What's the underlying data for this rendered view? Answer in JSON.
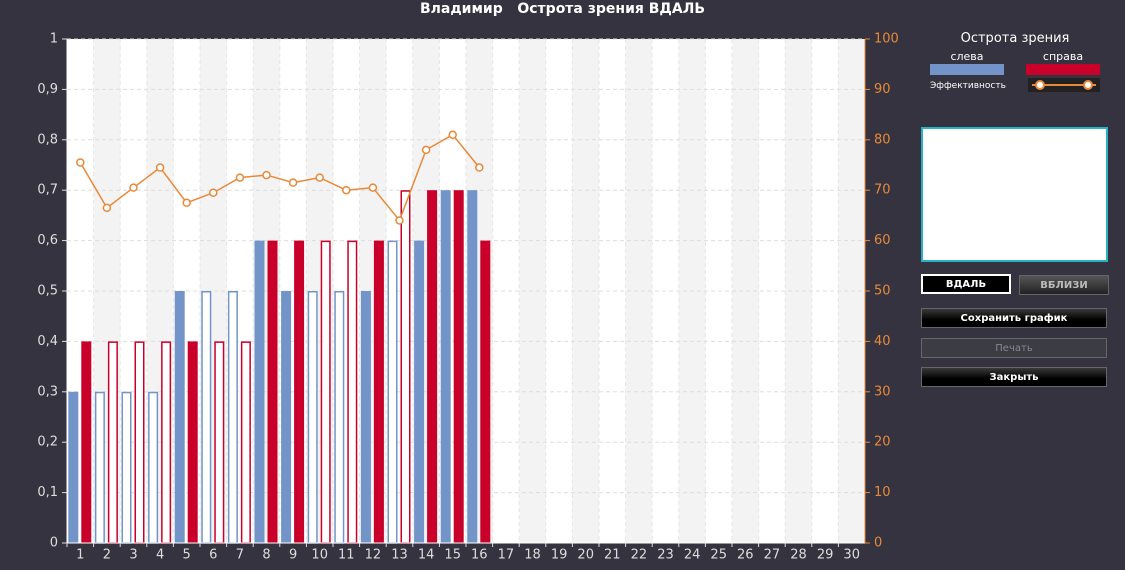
{
  "chart_data": {
    "type": "bar",
    "title": "Владимир   Острота зрения ВДАЛЬ",
    "legend_title": "Острота зрения",
    "categories": [
      "1",
      "2",
      "3",
      "4",
      "5",
      "6",
      "7",
      "8",
      "9",
      "10",
      "11",
      "12",
      "13",
      "14",
      "15",
      "16",
      "17",
      "18",
      "19",
      "20",
      "21",
      "22",
      "23",
      "24",
      "25",
      "26",
      "27",
      "28",
      "29",
      "30"
    ],
    "series": [
      {
        "name": "слева",
        "type": "bar",
        "color": "#7394c8",
        "values": [
          0.3,
          0.3,
          0.3,
          0.3,
          0.5,
          0.5,
          0.5,
          0.6,
          0.5,
          0.5,
          0.5,
          0.5,
          0.6,
          0.6,
          0.7,
          0.7,
          null,
          null,
          null,
          null,
          null,
          null,
          null,
          null,
          null,
          null,
          null,
          null,
          null,
          null
        ],
        "hollow": [
          false,
          true,
          true,
          true,
          false,
          true,
          true,
          false,
          false,
          true,
          true,
          false,
          true,
          false,
          false,
          false,
          false,
          false,
          false,
          false,
          false,
          false,
          false,
          false,
          false,
          false,
          false,
          false,
          false,
          false
        ]
      },
      {
        "name": "справа",
        "type": "bar",
        "color": "#c8002a",
        "values": [
          0.4,
          0.4,
          0.4,
          0.4,
          0.4,
          0.4,
          0.4,
          0.6,
          0.6,
          0.6,
          0.6,
          0.6,
          0.7,
          0.7,
          0.7,
          0.6,
          null,
          null,
          null,
          null,
          null,
          null,
          null,
          null,
          null,
          null,
          null,
          null,
          null,
          null
        ],
        "hollow": [
          false,
          true,
          true,
          true,
          false,
          true,
          true,
          false,
          false,
          true,
          true,
          false,
          true,
          false,
          false,
          false,
          false,
          false,
          false,
          false,
          false,
          false,
          false,
          false,
          false,
          false,
          false,
          false,
          false,
          false
        ]
      },
      {
        "name": "Эффективность",
        "type": "line",
        "axis": "y2",
        "color": "#e8893a",
        "values": [
          75.5,
          66.5,
          70.5,
          74.5,
          67.5,
          69.5,
          72.5,
          73,
          71.5,
          72.5,
          70,
          70.5,
          64,
          78,
          81,
          74.5,
          null,
          null,
          null,
          null,
          null,
          null,
          null,
          null,
          null,
          null,
          null,
          null,
          null,
          null
        ]
      }
    ],
    "ylim": [
      0,
      1
    ],
    "yticks": [
      0,
      {
        "value": 0.1,
        "label": "0,1"
      },
      {
        "value": 0.2,
        "label": "0,2"
      },
      {
        "value": 0.3,
        "label": "0,3"
      },
      {
        "value": 0.4,
        "label": "0,4"
      },
      {
        "value": 0.5,
        "label": "0,5"
      },
      {
        "value": 0.6,
        "label": "0,6"
      },
      {
        "value": 0.7,
        "label": "0,7"
      },
      {
        "value": 0.8,
        "label": "0,8"
      },
      {
        "value": 0.9,
        "label": "0,9"
      },
      1
    ],
    "y2lim": [
      0,
      100
    ],
    "y2ticks": [
      0,
      10,
      20,
      30,
      40,
      50,
      60,
      70,
      80,
      90,
      100
    ],
    "y2color": "#e8893a",
    "grid": true
  },
  "panel": {
    "buttons": [
      "ВДАЛЬ",
      "ВБЛИЗИ",
      "Сохранить график",
      "Печать",
      "Закрыть"
    ]
  }
}
